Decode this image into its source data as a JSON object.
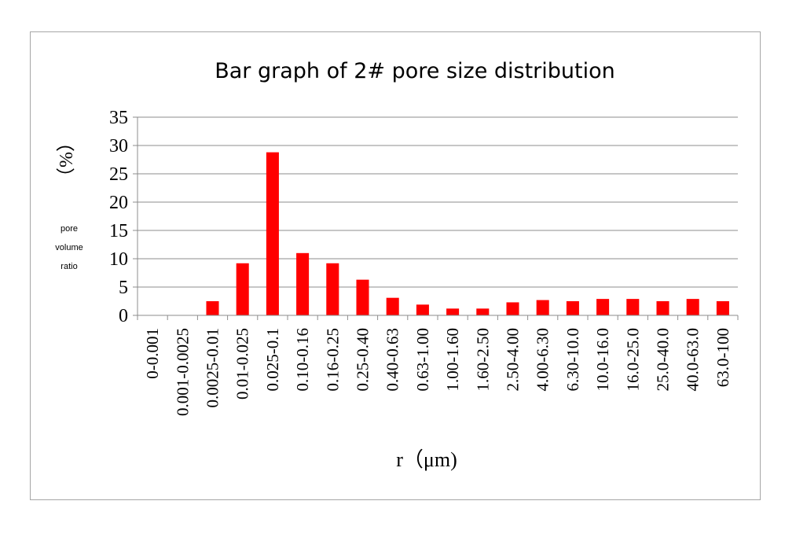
{
  "chart_data": {
    "type": "bar",
    "title": "Bar graph of 2# pore size distribution",
    "xlabel": "r（μm)",
    "ylabel_unit": "（%）",
    "ylabel_lines": [
      "pore",
      "volume",
      "ratio"
    ],
    "ylim": [
      0,
      35
    ],
    "yticks": [
      0,
      5,
      10,
      15,
      20,
      25,
      30,
      35
    ],
    "grid": true,
    "bar_color": "#ff0000",
    "categories": [
      "0-0.001",
      "0.001-0.0025",
      "0.0025-0.01",
      "0.01-0.025",
      "0.025-0.1",
      "0.10-0.16",
      "0.16-0.25",
      "0.25-0.40",
      "0.40-0.63",
      "0.63-1.00",
      "1.00-1.60",
      "1.60-2.50",
      "2.50-4.00",
      "4.00-6.30",
      "6.30-10.0",
      "10.0-16.0",
      "16.0-25.0",
      "25.0-40.0",
      "40.0-63.0",
      "63.0-100"
    ],
    "values": [
      0,
      0,
      2.5,
      9.2,
      28.8,
      11.0,
      9.2,
      6.3,
      3.1,
      1.9,
      1.2,
      1.2,
      2.3,
      2.7,
      2.5,
      2.9,
      2.9,
      2.5,
      2.9,
      2.5
    ]
  }
}
